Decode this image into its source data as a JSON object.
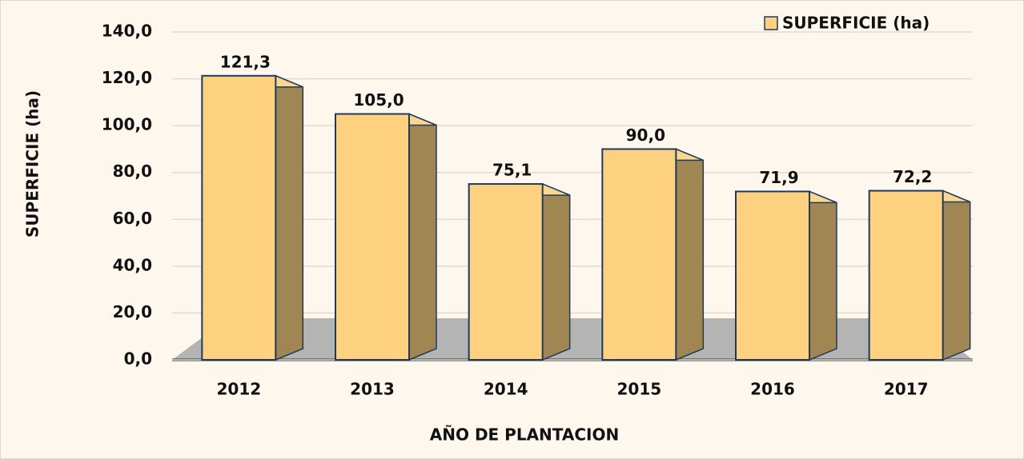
{
  "chart_data": {
    "type": "bar3d",
    "x_label": "AÑO DE  PLANTACION",
    "y_label": "SUPERFICIE (ha)",
    "categories": [
      "2012",
      "2013",
      "2014",
      "2015",
      "2016",
      "2017"
    ],
    "series": [
      {
        "name": "SUPERFICIE (ha)",
        "color": "#fdd17f",
        "values": [
          121.3,
          105.0,
          75.1,
          90.0,
          71.9,
          72.2
        ],
        "value_labels": [
          "121,3",
          "105,0",
          "75,1",
          "90,0",
          "71,9",
          "72,2"
        ]
      }
    ],
    "ylim": [
      0,
      140
    ],
    "yticks": [
      {
        "value": 0,
        "label": "0,0"
      },
      {
        "value": 20,
        "label": "20,0"
      },
      {
        "value": 40,
        "label": "40,0"
      },
      {
        "value": 60,
        "label": "60,0"
      },
      {
        "value": 80,
        "label": "80,0"
      },
      {
        "value": 100,
        "label": "100,0"
      },
      {
        "value": 120,
        "label": "120,0"
      },
      {
        "value": 140,
        "label": "140,0"
      }
    ],
    "grid": true,
    "legend": "top-right"
  }
}
